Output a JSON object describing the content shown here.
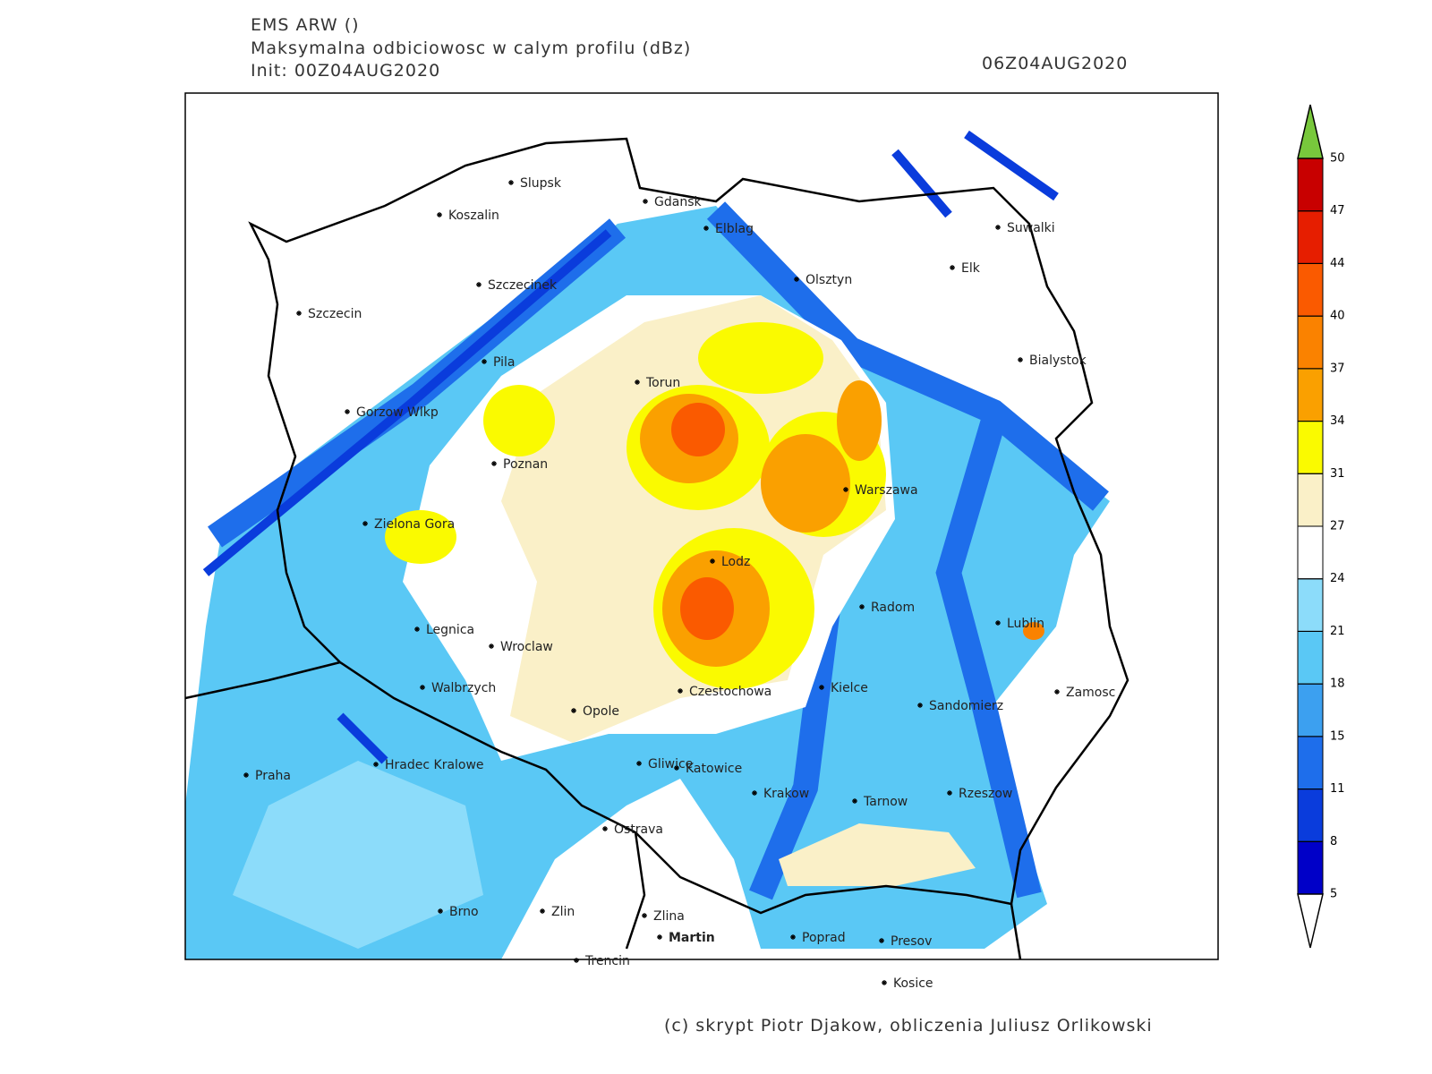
{
  "header": {
    "model": "EMS ARW ()",
    "field": "Maksymalna odbiciowosc w calym profilu (dBz)",
    "init": "Init: 00Z04AUG2020",
    "valid": "06Z04AUG2020"
  },
  "cities": [
    "Slupsk",
    "Koszalin",
    "Gdansk",
    "Elblag",
    "Suwalki",
    "Elk",
    "Olsztyn",
    "Szczecinek",
    "Szczecin",
    "Bialystok",
    "Pila",
    "Torun",
    "Gorzow Wlkp",
    "Poznan",
    "Warszawa",
    "Zielona Gora",
    "Lodz",
    "Radom",
    "Lublin",
    "Legnica",
    "Wroclaw",
    "Walbrzych",
    "Czestochowa",
    "Kielce",
    "Zamosc",
    "Sandomierz",
    "Opole",
    "Gliwice",
    "Katowice",
    "Praha",
    "Hradec Kralowe",
    "Krakow",
    "Rzeszow",
    "Tarnow",
    "Ostrava",
    "Brno",
    "Zlin",
    "Zlina",
    "Martin",
    "Poprad",
    "Presov",
    "Trencin",
    "Kosice"
  ],
  "colorbar": {
    "levels": [
      5,
      8,
      11,
      15,
      18,
      21,
      24,
      27,
      31,
      34,
      37,
      40,
      44,
      47,
      50
    ],
    "band_colors": [
      "#0000c8",
      "#0a3cdc",
      "#1e6eeb",
      "#3ca0f0",
      "#5ac8f5",
      "#8cdcfa",
      "#ffffff",
      "#faf0c8",
      "#fafa00",
      "#faa000",
      "#fa8200",
      "#fa5a00",
      "#e61e00",
      "#c80000"
    ],
    "under_color": "#ffffff",
    "over_color": "#78c83c"
  },
  "footer": "(c) skrypt Piotr Djakow, obliczenia Juliusz Orlikowski"
}
